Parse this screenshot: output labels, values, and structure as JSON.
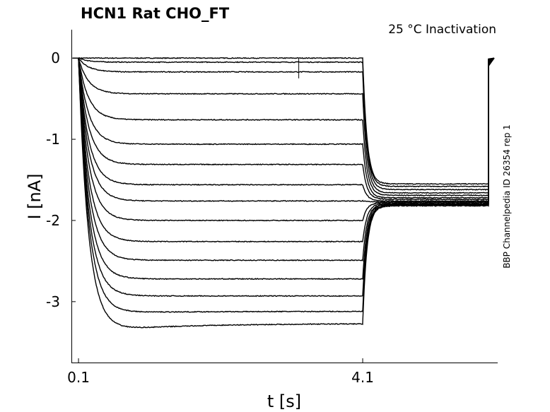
{
  "chart_data": {
    "type": "line",
    "title": "HCN1  Rat  CHO_FT",
    "subtitle": "25 °C  Inactivation",
    "side_label": "BBP Channelpedia ID 26354 rep 1",
    "xlabel": "t [s]",
    "ylabel": "I [nA]",
    "xlim": [
      0.0,
      6.0
    ],
    "ylim": [
      -3.75,
      0.35
    ],
    "x_ticks": [
      0.1,
      4.1
    ],
    "x_tick_labels": [
      "0.1",
      "4.1"
    ],
    "y_ticks": [
      0,
      -1,
      -2,
      -3
    ],
    "y_tick_labels": [
      "0",
      "-1",
      "-2",
      "-3"
    ],
    "step_start_s": 0.1,
    "step_end_s": 4.1,
    "record_end_s": 5.95,
    "test_pulse_start_s": 5.87,
    "tau_s": 0.14,
    "steady_state_nA": [
      -0.0,
      -0.05,
      -0.17,
      -0.44,
      -0.76,
      -1.06,
      -1.31,
      -1.56,
      -1.76,
      -2.0,
      -2.26,
      -2.49,
      -2.72,
      -2.93,
      -3.12,
      -3.27
    ],
    "peak_nA": [
      -0.0,
      -0.05,
      -0.17,
      -0.44,
      -0.76,
      -1.06,
      -1.31,
      -1.56,
      -1.76,
      -2.0,
      -2.26,
      -2.49,
      -2.72,
      -2.93,
      -3.14,
      -3.38
    ],
    "tail_nA": [
      -1.55,
      -1.58,
      -1.62,
      -1.66,
      -1.69,
      -1.72,
      -1.74,
      -1.76,
      -1.77,
      -1.78,
      -1.79,
      -1.8,
      -1.8,
      -1.81,
      -1.81,
      -1.82
    ],
    "colors": {
      "trace": "#000000",
      "axis": "#000000",
      "background": "#ffffff"
    },
    "grid": false,
    "legend": "none"
  }
}
